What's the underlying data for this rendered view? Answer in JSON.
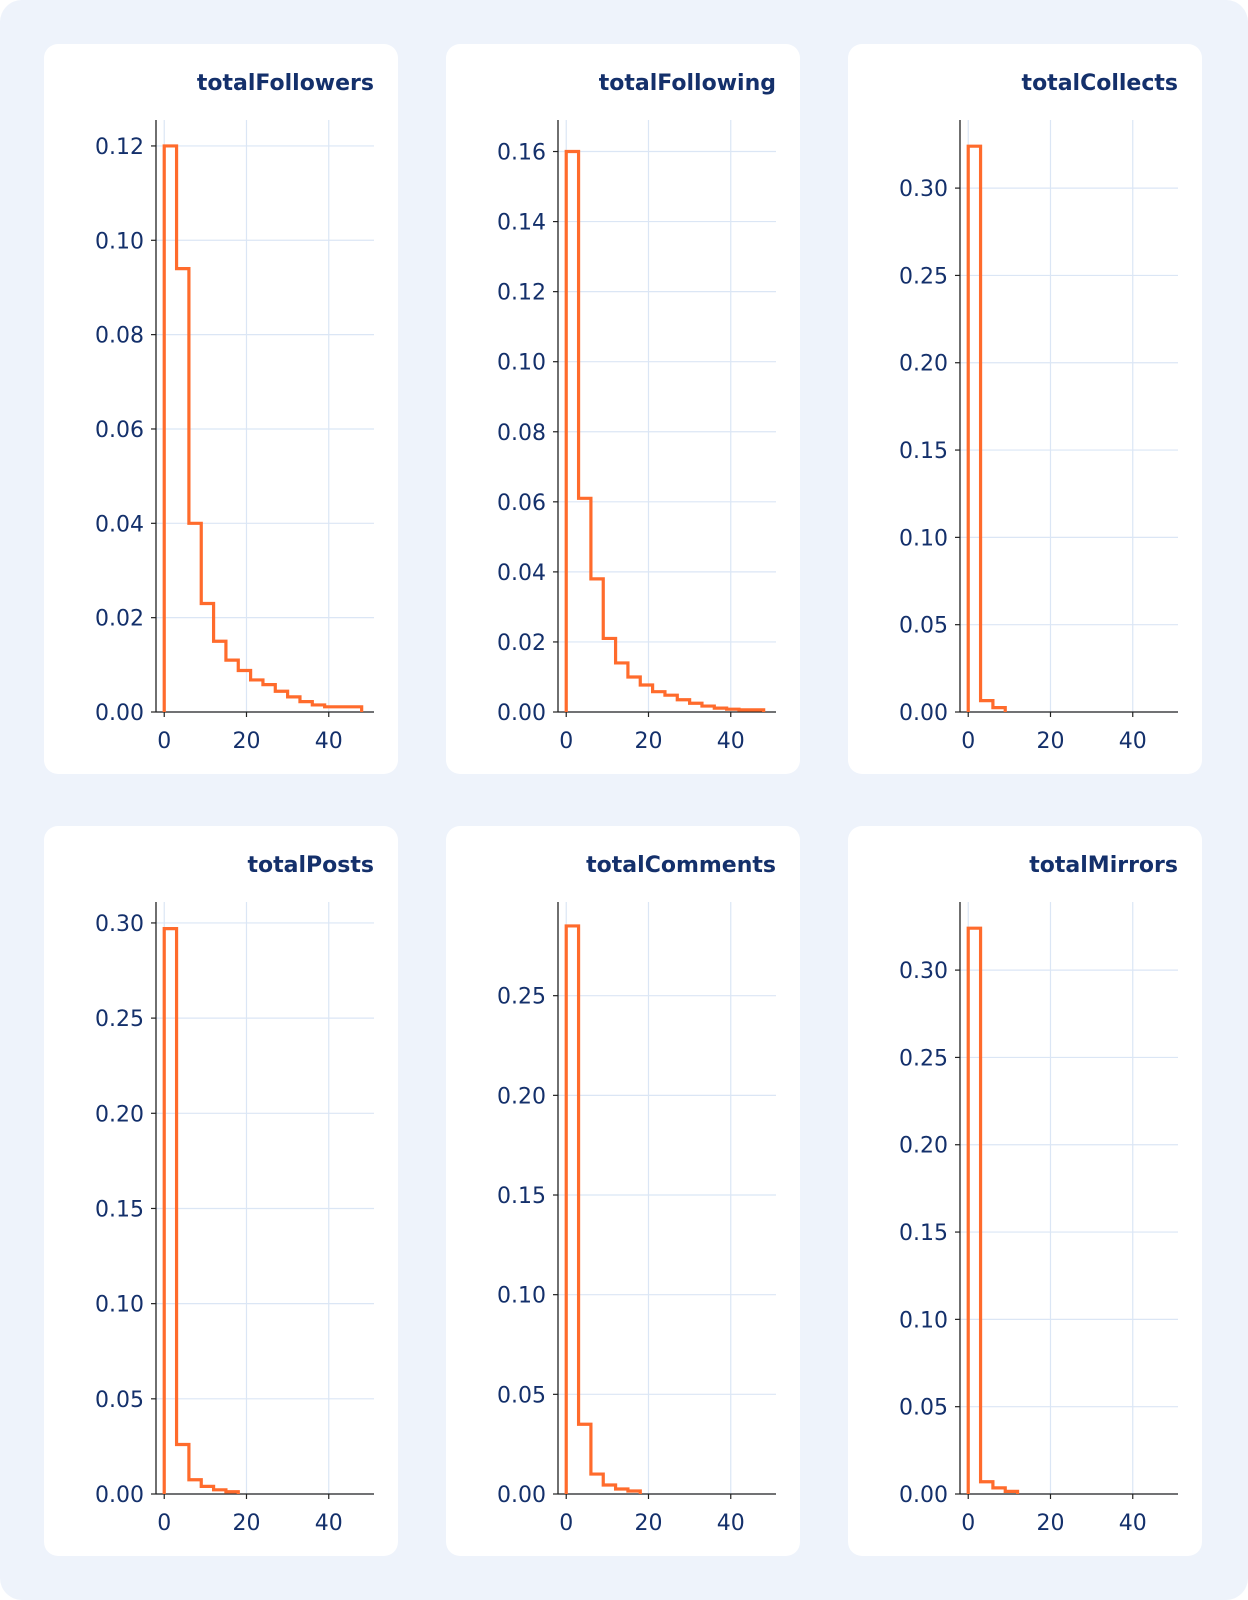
{
  "colors": {
    "background": "#eef3fb",
    "panel": "#ffffff",
    "text": "#14306b",
    "grid": "#dbe6f5",
    "line": "#ff6b2c"
  },
  "chart_data": [
    {
      "type": "histogram",
      "title": "totalFollowers",
      "bin_width": 3,
      "xlim": [
        -2,
        51
      ],
      "ylim": [
        0,
        0.1255
      ],
      "xticks": [
        "0",
        "20",
        "40"
      ],
      "yticks": [
        "0.00",
        "0.02",
        "0.04",
        "0.06",
        "0.08",
        "0.10",
        "0.12"
      ],
      "values": [
        0.12,
        0.094,
        0.04,
        0.023,
        0.015,
        0.011,
        0.0088,
        0.0068,
        0.0058,
        0.0044,
        0.0032,
        0.0022,
        0.0015,
        0.0011,
        0.0011,
        0.0011
      ]
    },
    {
      "type": "histogram",
      "title": "totalFollowing",
      "bin_width": 3,
      "xlim": [
        -2,
        51
      ],
      "ylim": [
        0,
        0.169
      ],
      "xticks": [
        "0",
        "20",
        "40"
      ],
      "yticks": [
        "0.00",
        "0.02",
        "0.04",
        "0.06",
        "0.08",
        "0.10",
        "0.12",
        "0.14",
        "0.16"
      ],
      "values": [
        0.16,
        0.061,
        0.038,
        0.021,
        0.014,
        0.01,
        0.0077,
        0.0058,
        0.0048,
        0.0035,
        0.0025,
        0.0017,
        0.0011,
        0.0008,
        0.0006,
        0.0006
      ]
    },
    {
      "type": "histogram",
      "title": "totalCollects",
      "bin_width": 3,
      "xlim": [
        -2,
        51
      ],
      "ylim": [
        0,
        0.339
      ],
      "xticks": [
        "0",
        "20",
        "40"
      ],
      "yticks": [
        "0.00",
        "0.05",
        "0.10",
        "0.15",
        "0.20",
        "0.25",
        "0.30"
      ],
      "values": [
        0.324,
        0.0065,
        0.0025
      ]
    },
    {
      "type": "histogram",
      "title": "totalPosts",
      "bin_width": 3,
      "xlim": [
        -2,
        51
      ],
      "ylim": [
        0,
        0.311
      ],
      "xticks": [
        "0",
        "20",
        "40"
      ],
      "yticks": [
        "0.00",
        "0.05",
        "0.10",
        "0.15",
        "0.20",
        "0.25",
        "0.30"
      ],
      "values": [
        0.297,
        0.026,
        0.0075,
        0.004,
        0.0022,
        0.0012
      ]
    },
    {
      "type": "histogram",
      "title": "totalComments",
      "bin_width": 3,
      "xlim": [
        -2,
        51
      ],
      "ylim": [
        0,
        0.297
      ],
      "xticks": [
        "0",
        "20",
        "40"
      ],
      "yticks": [
        "0.00",
        "0.05",
        "0.10",
        "0.15",
        "0.20",
        "0.25"
      ],
      "values": [
        0.285,
        0.035,
        0.01,
        0.0045,
        0.0025,
        0.0015
      ]
    },
    {
      "type": "histogram",
      "title": "totalMirrors",
      "bin_width": 3,
      "xlim": [
        -2,
        51
      ],
      "ylim": [
        0,
        0.339
      ],
      "xticks": [
        "0",
        "20",
        "40"
      ],
      "yticks": [
        "0.00",
        "0.05",
        "0.10",
        "0.15",
        "0.20",
        "0.25",
        "0.30"
      ],
      "values": [
        0.324,
        0.007,
        0.0035,
        0.0015
      ]
    }
  ]
}
